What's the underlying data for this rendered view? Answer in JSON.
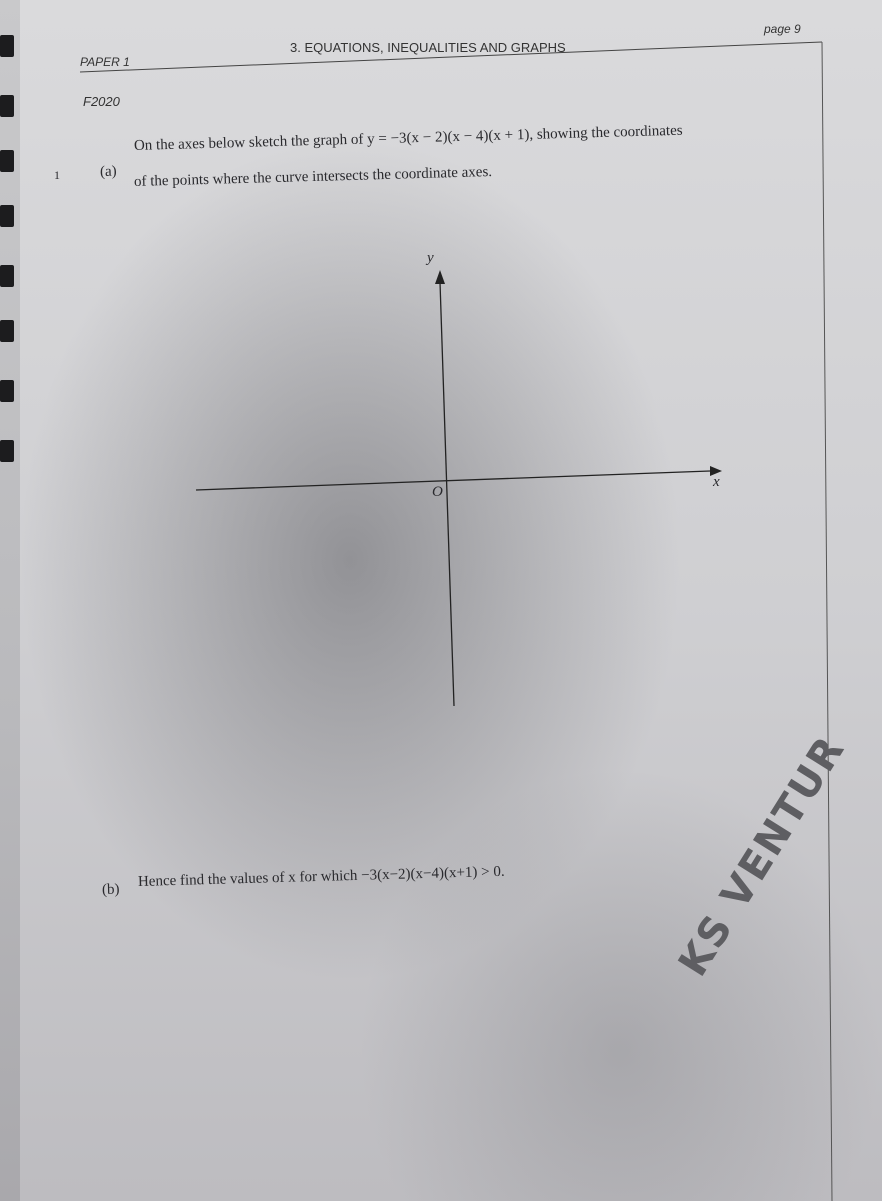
{
  "header": {
    "paper": "PAPER 1",
    "section": "3. EQUATIONS, INEQUALITIES AND GRAPHS",
    "page": "page 9",
    "code": "F2020"
  },
  "question": {
    "number": "1",
    "part_a": {
      "label": "(a)",
      "line1": "On the axes below sketch the graph of   y = −3(x − 2)(x − 4)(x + 1),   showing the coordinates",
      "line2": "of the points where the curve intersects the coordinate axes."
    },
    "axes": {
      "y_label": "y",
      "x_label": "x",
      "origin_label": "O"
    },
    "part_b": {
      "label": "(b)",
      "text": "Hence find the values of x for which   −3(x−2)(x−4)(x+1) > 0."
    }
  },
  "watermark": "KS VENTUR"
}
